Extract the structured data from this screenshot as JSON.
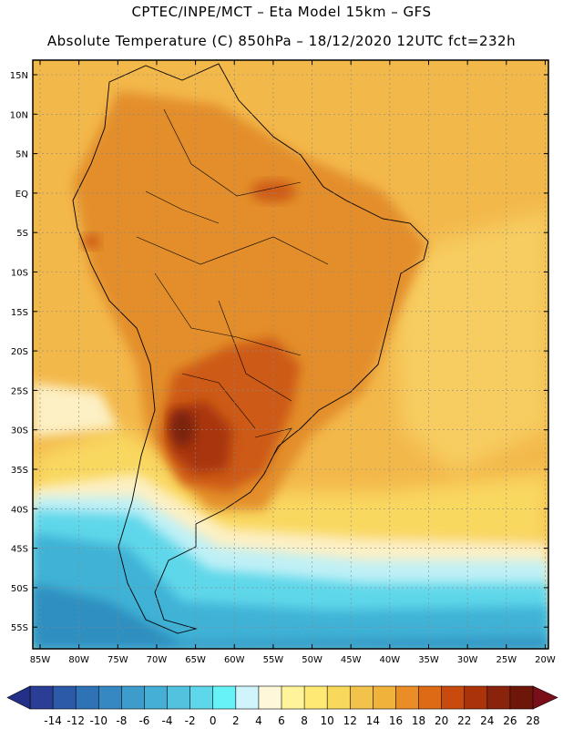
{
  "title_line1": "CPTEC/INPE/MCT –  Eta Model 15km – GFS",
  "title_line2": "Absolute Temperature (C) 850hPa – 18/12/2020 12UTC fct=232h",
  "lat_labels": [
    "15N",
    "10N",
    "5N",
    "EQ",
    "5S",
    "10S",
    "15S",
    "20S",
    "25S",
    "30S",
    "35S",
    "40S",
    "45S",
    "50S",
    "55S"
  ],
  "lon_labels": [
    "85W",
    "80W",
    "75W",
    "70W",
    "65W",
    "60W",
    "55W",
    "50W",
    "45W",
    "40W",
    "35W",
    "30W",
    "25W",
    "20W"
  ],
  "colorbar": {
    "labels": [
      "-14",
      "-12",
      "-10",
      "-8",
      "-6",
      "-4",
      "-2",
      "0",
      "2",
      "4",
      "6",
      "8",
      "10",
      "12",
      "14",
      "16",
      "18",
      "20",
      "22",
      "24",
      "26",
      "28"
    ],
    "colors": [
      "#2a3e96",
      "#2c5aa8",
      "#2f72b6",
      "#3688c2",
      "#3e9ccc",
      "#45afd6",
      "#52c3df",
      "#5fd7ea",
      "#66f2f7",
      "#cff4fb",
      "#fff7d9",
      "#fff49a",
      "#fde974",
      "#f9d95b",
      "#f3c24a",
      "#efb23a",
      "#ea8d27",
      "#df6a15",
      "#c94a0e",
      "#aa330a",
      "#8a230b",
      "#6e1708"
    ],
    "low_end_color": "#233088",
    "high_end_color": "#7a0f1a"
  },
  "map": {
    "background_color": "#f3b84a",
    "land_color": "#e38e2c",
    "hot_core_color": "#a8360e",
    "cold_ocean_color": "#3fb2d6",
    "deep_cold_color": "#2e8fc0",
    "mild_band_color": "#fdf0c4"
  }
}
